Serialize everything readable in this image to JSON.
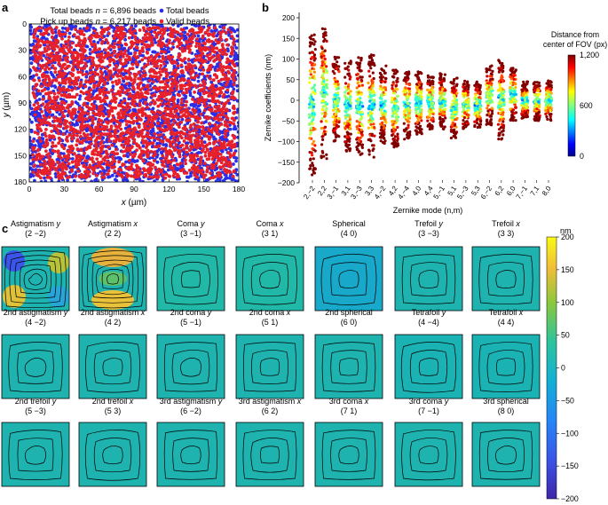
{
  "panel_a": {
    "letter": "a",
    "legend_line1_pre": "Total beads ",
    "legend_line1_n": "n",
    "legend_line1_post": " = 6,896 beads",
    "legend_line2_pre": "Pick up beads ",
    "legend_line2_n": "n",
    "legend_line2_post": " = 6,217 beads",
    "legend_total": "Total beads",
    "legend_valid": "Valid beads",
    "xlabel_var": "x",
    "xlabel_unit": " (µm)",
    "ylabel_var": "y",
    "ylabel_unit": " (µm)",
    "xticks": [
      "0",
      "30",
      "60",
      "90",
      "120",
      "150",
      "180"
    ],
    "yticks": [
      "0",
      "30",
      "60",
      "90",
      "120",
      "150",
      "180"
    ],
    "colors": {
      "total": "#2a2ee8",
      "valid": "#e8202a"
    }
  },
  "panel_b": {
    "letter": "b",
    "ylabel": "Zernike coefficients (nm)",
    "xlabel": "Zernike mode (n,m)",
    "colorbar_title_line1": "Distance from",
    "colorbar_title_line2": "center of FOV (px)",
    "colorbar_ticks": [
      "1,200",
      "600",
      "0"
    ]
  },
  "chart_data": {
    "type": "scatter",
    "xlabel": "Zernike mode (n,m)",
    "ylabel": "Zernike coefficients (nm)",
    "ylim": [
      -200,
      200
    ],
    "yticks": [
      200,
      150,
      100,
      50,
      0,
      -50,
      -100,
      -150,
      -200
    ],
    "categories": [
      "2,−2",
      "2,2",
      "3,−1",
      "3,1",
      "3,−3",
      "3,3",
      "4,−2",
      "4,2",
      "4,−4",
      "4,0",
      "4,4",
      "5,−1",
      "5,1",
      "5,−3",
      "5,3",
      "6,−2",
      "6,2",
      "6,0",
      "7,−1",
      "7,1",
      "8,0"
    ],
    "ranges": [
      [
        -185,
        165
      ],
      [
        -150,
        185
      ],
      [
        -100,
        105
      ],
      [
        -125,
        95
      ],
      [
        -135,
        105
      ],
      [
        -140,
        110
      ],
      [
        -110,
        85
      ],
      [
        -115,
        75
      ],
      [
        -95,
        70
      ],
      [
        -85,
        70
      ],
      [
        -70,
        60
      ],
      [
        -70,
        65
      ],
      [
        -95,
        55
      ],
      [
        -70,
        50
      ],
      [
        -70,
        45
      ],
      [
        -60,
        85
      ],
      [
        -95,
        100
      ],
      [
        -50,
        80
      ],
      [
        -45,
        45
      ],
      [
        -50,
        45
      ],
      [
        -50,
        50
      ]
    ],
    "colorbar_range": [
      0,
      1200
    ]
  },
  "panel_c": {
    "letter": "c",
    "unit": "nm",
    "colorbar_ticks": [
      "200",
      "150",
      "100",
      "50",
      "0",
      "−50",
      "−100",
      "−150",
      "−200"
    ],
    "maps": [
      {
        "name": "Astigmatism ",
        "italic": "y",
        "mode": "(2 −2)"
      },
      {
        "name": "Astigmatism ",
        "italic": "x",
        "mode": "(2 2)"
      },
      {
        "name": "Coma ",
        "italic": "y",
        "mode": "(3 −1)"
      },
      {
        "name": "Coma ",
        "italic": "x",
        "mode": "(3 1)"
      },
      {
        "name": "Spherical",
        "italic": "",
        "mode": "(4 0)"
      },
      {
        "name": "Trefoil ",
        "italic": "y",
        "mode": "(3 −3)"
      },
      {
        "name": "Trefoil ",
        "italic": "x",
        "mode": "(3 3)"
      },
      {
        "name": "2nd astigmatism ",
        "italic": "y",
        "mode": "(4 −2)"
      },
      {
        "name": "2nd astigmatism ",
        "italic": "x",
        "mode": "(4 2)"
      },
      {
        "name": "2nd coma ",
        "italic": "y",
        "mode": "(5 −1)"
      },
      {
        "name": "2nd coma ",
        "italic": "x",
        "mode": "(5 1)"
      },
      {
        "name": "2nd spherical",
        "italic": "",
        "mode": "(6 0)"
      },
      {
        "name": "Tetrafoil ",
        "italic": "y",
        "mode": "(4 −4)"
      },
      {
        "name": "Tetrafoil ",
        "italic": "x",
        "mode": "(4 4)"
      },
      {
        "name": "2nd trefoil ",
        "italic": "y",
        "mode": "(5 −3)"
      },
      {
        "name": "2nd trefoil ",
        "italic": "x",
        "mode": "(5 3)"
      },
      {
        "name": "3rd astigmatism ",
        "italic": "y",
        "mode": "(6 −2)"
      },
      {
        "name": "3rd astigmatism ",
        "italic": "x",
        "mode": "(6 2)"
      },
      {
        "name": "3rd coma ",
        "italic": "x",
        "mode": "(7 1)"
      },
      {
        "name": "3rd coma ",
        "italic": "y",
        "mode": "(7 −1)"
      },
      {
        "name": "3rd spherical",
        "italic": "",
        "mode": "(8 0)"
      }
    ]
  }
}
